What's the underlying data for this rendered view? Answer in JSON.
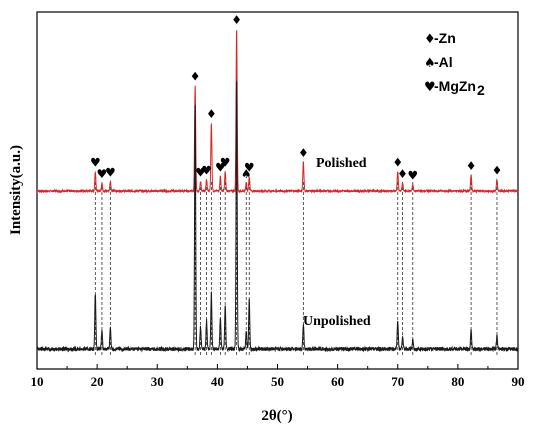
{
  "chart_data": {
    "type": "line",
    "title": "",
    "xlabel": "2θ(°)",
    "ylabel": "Intensity(a.u.)",
    "xlim": [
      10,
      90
    ],
    "x_ticks": [
      "10",
      "20",
      "30",
      "40",
      "50",
      "60",
      "70",
      "80",
      "90"
    ],
    "grid": false,
    "colors": {
      "polished": "#d62728",
      "unpolished": "#1a1a1a",
      "dashes": "#333333"
    },
    "annotations": {
      "polished": "Polished",
      "unpolished": "Unpolished"
    },
    "legend": {
      "position": "top-right",
      "entries": [
        {
          "symbol": "diamond",
          "glyph": "♦",
          "label": "-Zn"
        },
        {
          "symbol": "spade",
          "glyph": "♠",
          "label": "-Al"
        },
        {
          "symbol": "heart",
          "glyph": "♥",
          "label": "-MgZn",
          "sub": "2"
        }
      ]
    },
    "series": [
      {
        "name": "Polished",
        "peaks": [
          {
            "x": 19.7,
            "h": 0.12
          },
          {
            "x": 20.8,
            "h": 0.05
          },
          {
            "x": 22.2,
            "h": 0.06
          },
          {
            "x": 36.3,
            "h": 0.65
          },
          {
            "x": 37.2,
            "h": 0.06
          },
          {
            "x": 38.2,
            "h": 0.07
          },
          {
            "x": 39.0,
            "h": 0.42
          },
          {
            "x": 40.5,
            "h": 0.09
          },
          {
            "x": 41.3,
            "h": 0.12
          },
          {
            "x": 43.2,
            "h": 1.0
          },
          {
            "x": 44.8,
            "h": 0.05
          },
          {
            "x": 45.3,
            "h": 0.09
          },
          {
            "x": 54.3,
            "h": 0.18
          },
          {
            "x": 70.0,
            "h": 0.12
          },
          {
            "x": 70.8,
            "h": 0.05
          },
          {
            "x": 72.5,
            "h": 0.04
          },
          {
            "x": 82.2,
            "h": 0.1
          },
          {
            "x": 86.5,
            "h": 0.07
          }
        ]
      },
      {
        "name": "Unpolished",
        "peaks": [
          {
            "x": 19.7,
            "h": 0.18
          },
          {
            "x": 20.8,
            "h": 0.06
          },
          {
            "x": 22.2,
            "h": 0.07
          },
          {
            "x": 36.3,
            "h": 0.78
          },
          {
            "x": 37.2,
            "h": 0.07
          },
          {
            "x": 38.2,
            "h": 0.09
          },
          {
            "x": 39.0,
            "h": 0.18
          },
          {
            "x": 40.5,
            "h": 0.1
          },
          {
            "x": 41.3,
            "h": 0.14
          },
          {
            "x": 43.2,
            "h": 0.86
          },
          {
            "x": 44.8,
            "h": 0.06
          },
          {
            "x": 45.3,
            "h": 0.16
          },
          {
            "x": 54.3,
            "h": 0.08
          },
          {
            "x": 70.0,
            "h": 0.09
          },
          {
            "x": 70.8,
            "h": 0.04
          },
          {
            "x": 72.5,
            "h": 0.03
          },
          {
            "x": 82.2,
            "h": 0.06
          },
          {
            "x": 86.5,
            "h": 0.04
          }
        ]
      }
    ],
    "peak_markers": [
      {
        "x": 19.7,
        "phase": "heart"
      },
      {
        "x": 20.8,
        "phase": "heart"
      },
      {
        "x": 22.2,
        "phase": "heart"
      },
      {
        "x": 36.3,
        "phase": "diamond"
      },
      {
        "x": 37.2,
        "phase": "heart"
      },
      {
        "x": 38.2,
        "phase": "heart"
      },
      {
        "x": 39.0,
        "phase": "diamond"
      },
      {
        "x": 40.5,
        "phase": "heart"
      },
      {
        "x": 41.3,
        "phase": "heart"
      },
      {
        "x": 43.2,
        "phase": "diamond"
      },
      {
        "x": 44.8,
        "phase": "spade"
      },
      {
        "x": 45.3,
        "phase": "heart"
      },
      {
        "x": 54.3,
        "phase": "diamond"
      },
      {
        "x": 70.0,
        "phase": "diamond"
      },
      {
        "x": 70.8,
        "phase": "diamond"
      },
      {
        "x": 72.5,
        "phase": "heart"
      },
      {
        "x": 82.2,
        "phase": "diamond"
      },
      {
        "x": 86.5,
        "phase": "diamond"
      }
    ]
  }
}
